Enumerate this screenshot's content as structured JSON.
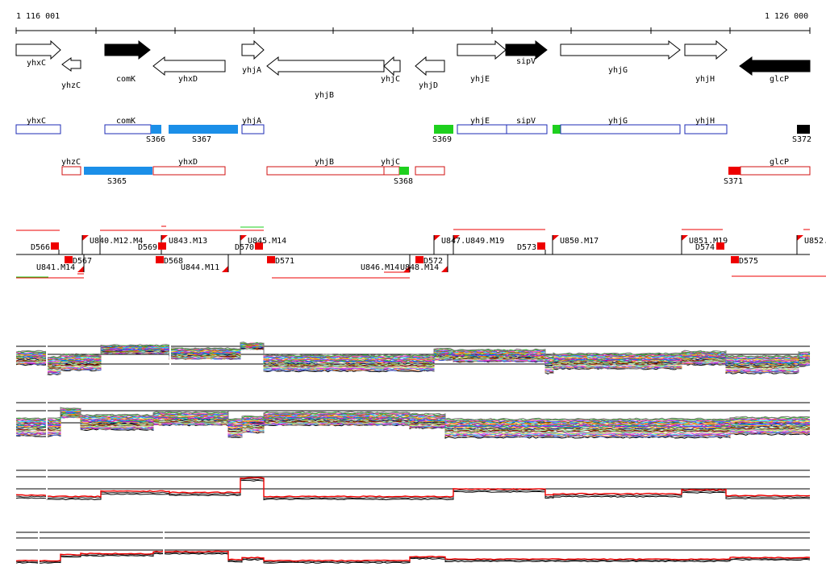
{
  "ruler": {
    "start_label": "1 116 001",
    "end_label": "1 126 000"
  },
  "colors": {
    "gene_outline": "#000000",
    "gene_filled": "#000000",
    "plus_strand_box": "#1d2bb5",
    "minus_strand_box": "#d01010",
    "segment_blue": "#1b8fe8",
    "segment_green": "#1ed01e",
    "segment_black": "#000000",
    "feature_red": "#ee0000",
    "baseline": "#000000"
  },
  "genes": [
    {
      "name": "yhxC"
    },
    {
      "name": "yhzC"
    },
    {
      "name": "comK"
    },
    {
      "name": "yhxD"
    },
    {
      "name": "yhjA"
    },
    {
      "name": "yhjB"
    },
    {
      "name": "yhjC"
    },
    {
      "name": "yhjD"
    },
    {
      "name": "yhjE"
    },
    {
      "name": "sipV"
    },
    {
      "name": "yhjG"
    },
    {
      "name": "yhjH"
    },
    {
      "name": "glcP"
    }
  ],
  "segments": [
    {
      "label": "S365"
    },
    {
      "label": "S366"
    },
    {
      "label": "S367"
    },
    {
      "label": "S368"
    },
    {
      "label": "S369"
    },
    {
      "label": "S371"
    },
    {
      "label": "S372"
    }
  ],
  "features_up": [
    {
      "label": "D566"
    },
    {
      "label": "U840.M12.M4"
    },
    {
      "label": "U843.M13"
    },
    {
      "label": "D569"
    },
    {
      "label": "D570"
    },
    {
      "label": "U845.M14"
    },
    {
      "label": "U847.U849.M19"
    },
    {
      "label": "D573"
    },
    {
      "label": "U850.M17"
    },
    {
      "label": "U851.M19"
    },
    {
      "label": "D574"
    },
    {
      "label": "U852."
    }
  ],
  "features_down": [
    {
      "label": "U841.M14"
    },
    {
      "label": "D567"
    },
    {
      "label": "D568"
    },
    {
      "label": "U844.M11"
    },
    {
      "label": "D571"
    },
    {
      "label": "U846.M14"
    },
    {
      "label": "U848.M14"
    },
    {
      "label": "D572"
    },
    {
      "label": "D575"
    }
  ],
  "expression_panels": [
    {
      "id": "plus-strand-profiles",
      "series_count": 30
    },
    {
      "id": "minus-strand-profiles",
      "series_count": 30
    },
    {
      "id": "plus-strand-summary",
      "series_count": 3
    },
    {
      "id": "minus-strand-summary",
      "series_count": 3
    }
  ]
}
